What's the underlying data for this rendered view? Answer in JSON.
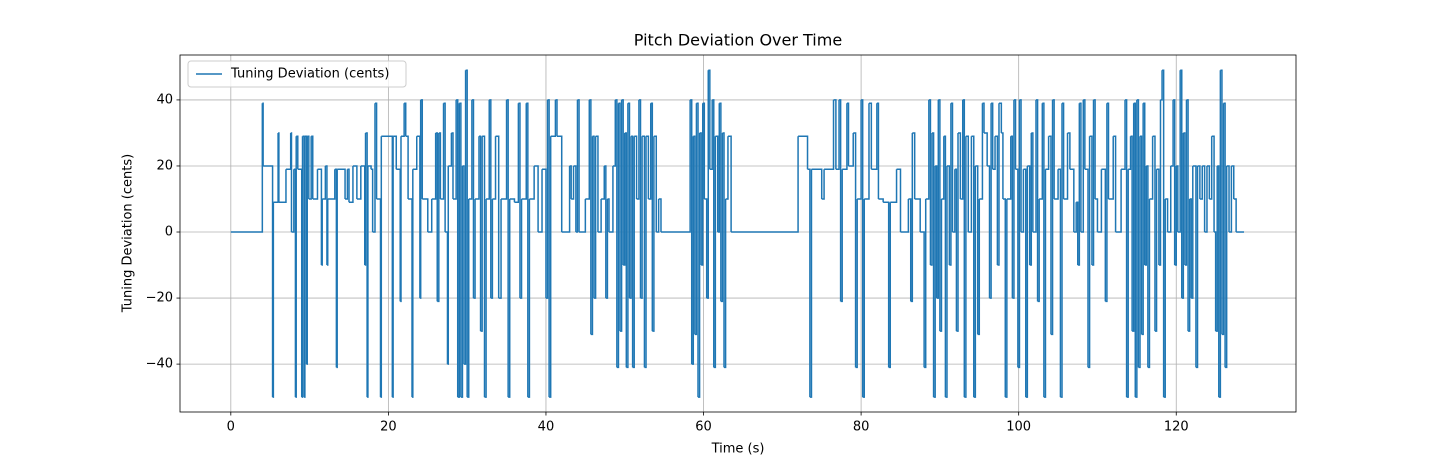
{
  "chart_data": {
    "type": "line",
    "drawstyle": "steps-post",
    "title": "Pitch Deviation Over Time",
    "xlabel": "Time (s)",
    "ylabel": "Tuning Deviation (cents)",
    "grid": true,
    "legend": "upper left",
    "xlim": [
      -6.45,
      135.2
    ],
    "ylim": [
      -54.5,
      53.6
    ],
    "xticks": [
      0,
      20,
      40,
      60,
      80,
      100,
      120
    ],
    "yticks": [
      {
        "value": -40,
        "label": "−40"
      },
      {
        "value": -20,
        "label": "−20"
      },
      0,
      20,
      40
    ],
    "x": [
      0,
      4.0,
      4.1,
      5.3,
      5.4,
      6.0,
      6.1,
      7.0,
      7.6,
      7.7,
      8.0,
      8.2,
      8.3,
      8.5,
      9.0,
      9.1,
      9.3,
      9.4,
      9.6,
      9.7,
      9.9,
      10.2,
      10.4,
      11.0,
      11.5,
      11.6,
      12.0,
      12.2,
      12.3,
      13.2,
      13.4,
      13.5,
      14.5,
      14.8,
      15.0,
      15.5,
      16.0,
      16.5,
      17.0,
      17.1,
      17.3,
      17.4,
      17.8,
      18.0,
      18.3,
      18.5,
      19.0,
      19.1,
      20.5,
      20.6,
      21.0,
      21.5,
      21.6,
      22.0,
      22.2,
      22.5,
      23.0,
      23.1,
      23.6,
      24.0,
      24.1,
      24.3,
      25.0,
      25.5,
      26.0,
      26.2,
      26.4,
      26.6,
      27.0,
      27.2,
      27.5,
      27.6,
      28.0,
      28.2,
      28.6,
      28.8,
      29.0,
      29.2,
      29.4,
      29.6,
      29.8,
      30.0,
      30.2,
      30.6,
      30.8,
      31.0,
      31.5,
      31.7,
      31.9,
      32.2,
      32.4,
      32.8,
      33.0,
      33.2,
      33.6,
      34.0,
      34.3,
      35.0,
      35.2,
      35.4,
      36.0,
      36.5,
      36.7,
      36.9,
      37.5,
      37.7,
      37.9,
      38.5,
      39.0,
      39.5,
      40.0,
      40.2,
      40.4,
      40.6,
      41.2,
      41.4,
      42.0,
      43.0,
      43.2,
      43.5,
      43.8,
      44.0,
      44.2,
      45.0,
      45.5,
      45.7,
      45.9,
      46.1,
      46.3,
      46.6,
      47.0,
      47.4,
      47.6,
      47.8,
      48.0,
      48.5,
      48.8,
      49.0,
      49.2,
      49.4,
      49.6,
      49.8,
      50.0,
      50.2,
      50.4,
      50.6,
      50.8,
      51.0,
      51.2,
      51.5,
      51.8,
      52.0,
      52.2,
      52.5,
      52.7,
      53.0,
      53.3,
      53.5,
      53.7,
      54.0,
      54.3,
      54.6,
      58.3,
      58.5,
      58.7,
      58.9,
      59.1,
      59.3,
      59.5,
      59.7,
      59.9,
      60.1,
      60.4,
      60.6,
      60.8,
      61.1,
      61.3,
      61.5,
      61.8,
      62.0,
      62.2,
      62.4,
      62.6,
      62.8,
      63.1,
      63.5,
      72.0,
      73.2,
      73.5,
      73.7,
      75.0,
      75.3,
      76.5,
      76.8,
      77.2,
      77.4,
      77.6,
      78.2,
      78.4,
      79.0,
      79.3,
      79.5,
      80.0,
      80.2,
      80.4,
      81.0,
      81.3,
      82.0,
      82.2,
      82.8,
      83.5,
      83.7,
      84.5,
      85.0,
      86.0,
      86.3,
      86.5,
      86.8,
      87.5,
      88.0,
      88.2,
      88.6,
      88.8,
      89.0,
      89.2,
      89.4,
      89.6,
      89.8,
      90.0,
      90.2,
      90.5,
      90.7,
      90.9,
      91.2,
      91.4,
      91.6,
      91.9,
      92.1,
      92.3,
      92.6,
      92.9,
      93.1,
      93.3,
      93.6,
      94.0,
      94.3,
      94.5,
      94.8,
      95.0,
      95.4,
      95.6,
      96.0,
      96.3,
      96.5,
      96.7,
      97.0,
      97.3,
      97.5,
      97.8,
      98.0,
      98.3,
      98.5,
      99.0,
      99.2,
      99.4,
      99.6,
      99.9,
      100.1,
      100.3,
      100.6,
      100.9,
      101.1,
      101.4,
      101.6,
      101.8,
      102.2,
      102.4,
      102.6,
      103.0,
      103.2,
      103.4,
      103.8,
      104.1,
      104.3,
      104.5,
      105.0,
      105.3,
      105.5,
      105.7,
      106.2,
      106.5,
      107.0,
      107.3,
      107.5,
      107.7,
      107.9,
      108.2,
      108.4,
      108.8,
      109.0,
      109.3,
      109.5,
      109.7,
      110.0,
      110.5,
      111.0,
      111.2,
      111.4,
      112.0,
      112.3,
      113.0,
      113.5,
      113.7,
      113.9,
      114.2,
      114.4,
      114.6,
      114.8,
      115.0,
      115.2,
      115.4,
      115.6,
      115.8,
      116.0,
      116.2,
      116.4,
      116.6,
      117.0,
      117.3,
      117.5,
      117.8,
      118.0,
      118.2,
      118.4,
      118.6,
      118.9,
      119.3,
      119.6,
      119.8,
      120.0,
      120.2,
      120.5,
      120.7,
      120.9,
      121.1,
      121.3,
      121.5,
      121.7,
      121.9,
      122.1,
      122.5,
      122.7,
      123.0,
      123.3,
      123.6,
      123.9,
      124.2,
      124.5,
      124.8,
      125.0,
      125.2,
      125.4,
      125.6,
      125.8,
      126.0,
      126.2,
      126.4,
      126.7,
      127.0,
      127.3,
      127.6,
      128.6
    ],
    "series": [
      {
        "name": "Tuning Deviation (cents)",
        "color": "#1f77b4",
        "values": [
          0,
          39,
          20,
          -50,
          9,
          30,
          9,
          19,
          30,
          0,
          19,
          -50,
          29,
          19,
          -50,
          29,
          -50,
          29,
          -40,
          29,
          10,
          29,
          10,
          19,
          -10,
          10,
          20,
          -10,
          10,
          19,
          -41,
          19,
          10,
          19,
          9,
          20,
          10,
          20,
          -10,
          30,
          -50,
          20,
          19,
          0,
          39,
          10,
          -50,
          29,
          -50,
          29,
          19,
          -21,
          29,
          39,
          29,
          10,
          -50,
          19,
          29,
          -20,
          40,
          10,
          0,
          10,
          30,
          -21,
          30,
          10,
          39,
          0,
          -40,
          20,
          30,
          10,
          40,
          -50,
          39,
          -50,
          20,
          -40,
          49,
          -50,
          10,
          40,
          -20,
          10,
          29,
          -30,
          29,
          -50,
          10,
          40,
          -20,
          10,
          29,
          -20,
          10,
          40,
          -50,
          10,
          9,
          39,
          -20,
          10,
          39,
          -50,
          10,
          20,
          0,
          19,
          -20,
          40,
          -50,
          29,
          40,
          29,
          0,
          20,
          10,
          20,
          0,
          40,
          0,
          10,
          40,
          -31,
          29,
          -20,
          29,
          0,
          10,
          20,
          -20,
          10,
          0,
          20,
          40,
          -41,
          39,
          -30,
          40,
          -10,
          30,
          -41,
          39,
          -20,
          29,
          -41,
          29,
          10,
          40,
          -20,
          29,
          -41,
          29,
          10,
          39,
          -30,
          29,
          0,
          10,
          0,
          40,
          -40,
          29,
          -31,
          39,
          -50,
          30,
          -10,
          39,
          10,
          -20,
          49,
          19,
          40,
          -41,
          29,
          0,
          39,
          -21,
          30,
          -41,
          10,
          29,
          0,
          29,
          19,
          -50,
          19,
          10,
          19,
          40,
          19,
          40,
          -21,
          19,
          39,
          20,
          30,
          -41,
          10,
          40,
          -50,
          10,
          39,
          19,
          39,
          10,
          9,
          -41,
          9,
          19,
          0,
          10,
          -21,
          30,
          10,
          0,
          -41,
          10,
          40,
          -10,
          30,
          -50,
          20,
          -20,
          40,
          -30,
          10,
          29,
          -50,
          20,
          -10,
          39,
          0,
          19,
          -30,
          30,
          10,
          40,
          -50,
          29,
          0,
          29,
          -50,
          20,
          -31,
          10,
          39,
          30,
          20,
          -20,
          39,
          19,
          29,
          -10,
          39,
          30,
          10,
          -50,
          10,
          29,
          -20,
          40,
          19,
          -41,
          40,
          0,
          19,
          -50,
          20,
          -10,
          30,
          0,
          40,
          -21,
          10,
          39,
          -50,
          19,
          29,
          -31,
          40,
          10,
          19,
          -50,
          39,
          10,
          30,
          19,
          0,
          9,
          -10,
          39,
          0,
          40,
          19,
          -41,
          29,
          -10,
          40,
          10,
          0,
          19,
          -21,
          39,
          10,
          29,
          0,
          19,
          40,
          -50,
          19,
          29,
          -30,
          39,
          -50,
          40,
          -41,
          29,
          -31,
          39,
          -10,
          20,
          -41,
          10,
          29,
          -30,
          19,
          -10,
          40,
          49,
          -50,
          10,
          0,
          20,
          40,
          -10,
          20,
          0,
          49,
          -20,
          30,
          -10,
          40,
          -30,
          10,
          -20,
          20,
          -41,
          20,
          10,
          20,
          0,
          20,
          10,
          29,
          0,
          -30,
          20,
          -50,
          49,
          -31,
          39,
          -41,
          20,
          0,
          20,
          10,
          0,
          0
        ]
      }
    ]
  }
}
